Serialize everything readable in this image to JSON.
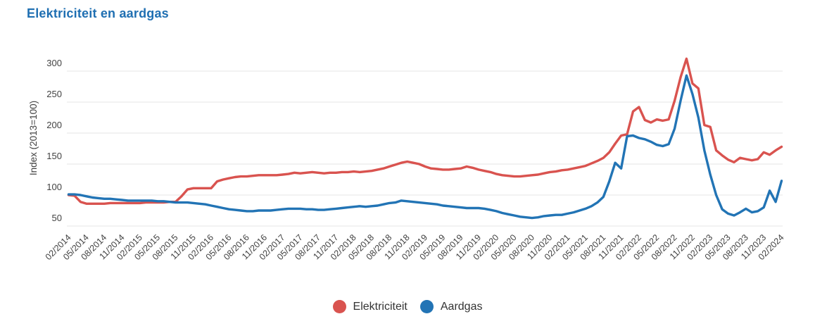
{
  "colors": {
    "title": "#1f6fb2",
    "axis_text": "#424242",
    "gridline": "#e4e4e4",
    "electricity": "#d9534f",
    "gas": "#2274b5"
  },
  "chart_data": {
    "type": "line",
    "title": "Elektriciteit en aardgas",
    "ylabel": "Index (2013=100)",
    "y_ticks": [
      50,
      100,
      150,
      200,
      250,
      300
    ],
    "ylim": [
      50,
      320
    ],
    "x_start": "02/2014",
    "x_end": "02/2024",
    "x_frequency": "monthly",
    "grid": "horizontal",
    "legend_position": "bottom",
    "x_tick_labels": [
      "02/2014",
      "05/2014",
      "08/2014",
      "11/2014",
      "02/2015",
      "05/2015",
      "08/2015",
      "11/2015",
      "02/2016",
      "05/2016",
      "08/2016",
      "11/2016",
      "02/2017",
      "05/2017",
      "08/2017",
      "11/2017",
      "02/2018",
      "05/2018",
      "08/2018",
      "11/2018",
      "02/2019",
      "05/2019",
      "08/2019",
      "11/2019",
      "02/2020",
      "05/2020",
      "08/2020",
      "11/2020",
      "02/2021",
      "05/2021",
      "08/2021",
      "11/2021",
      "02/2022",
      "05/2022",
      "08/2022",
      "11/2022",
      "02/2023",
      "05/2023",
      "08/2023",
      "11/2023",
      "02/2024"
    ],
    "series": [
      {
        "id": "elektriciteit",
        "name": "Elektriciteit",
        "color": "#d9534f",
        "values": [
          100,
          99,
          89,
          86,
          86,
          86,
          86,
          87,
          87,
          87,
          87,
          87,
          87,
          88,
          88,
          88,
          88,
          89,
          89,
          98,
          109,
          111,
          111,
          111,
          111,
          122,
          125,
          127,
          129,
          130,
          130,
          131,
          132,
          132,
          132,
          132,
          133,
          134,
          136,
          135,
          136,
          137,
          136,
          135,
          136,
          136,
          137,
          137,
          138,
          137,
          138,
          139,
          141,
          143,
          146,
          149,
          152,
          154,
          152,
          150,
          146,
          143,
          142,
          141,
          141,
          142,
          143,
          146,
          144,
          141,
          139,
          137,
          134,
          132,
          131,
          130,
          130,
          131,
          132,
          133,
          135,
          137,
          138,
          140,
          141,
          143,
          145,
          147,
          151,
          155,
          160,
          169,
          183,
          196,
          198,
          235,
          242,
          221,
          217,
          222,
          220,
          222,
          252,
          290,
          320,
          280,
          272,
          213,
          210,
          172,
          164,
          157,
          153,
          160,
          158,
          156,
          158,
          169,
          165,
          172,
          178
        ]
      },
      {
        "id": "aardgas",
        "name": "Aardgas",
        "color": "#2274b5",
        "values": [
          101,
          101,
          100,
          98,
          96,
          95,
          94,
          94,
          93,
          92,
          91,
          91,
          91,
          91,
          91,
          90,
          90,
          89,
          88,
          88,
          88,
          87,
          86,
          85,
          83,
          81,
          79,
          77,
          76,
          75,
          74,
          74,
          75,
          75,
          75,
          76,
          77,
          78,
          78,
          78,
          77,
          77,
          76,
          76,
          77,
          78,
          79,
          80,
          81,
          82,
          81,
          82,
          83,
          85,
          87,
          88,
          91,
          90,
          89,
          88,
          87,
          86,
          85,
          83,
          82,
          81,
          80,
          79,
          79,
          79,
          78,
          76,
          74,
          71,
          69,
          67,
          65,
          64,
          63,
          64,
          66,
          67,
          68,
          68,
          70,
          72,
          75,
          78,
          82,
          88,
          97,
          122,
          152,
          143,
          195,
          196,
          192,
          190,
          186,
          181,
          179,
          182,
          207,
          252,
          293,
          263,
          225,
          172,
          133,
          100,
          77,
          70,
          67,
          72,
          78,
          72,
          74,
          80,
          107,
          89,
          123
        ]
      }
    ]
  }
}
